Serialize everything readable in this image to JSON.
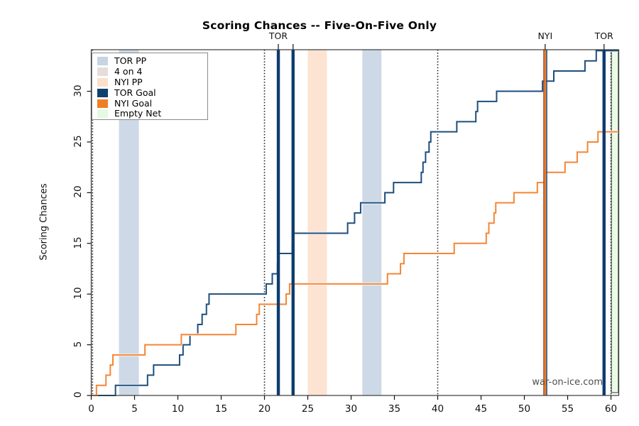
{
  "chart_data": {
    "type": "line",
    "subtype": "cumulative-step",
    "title": "Scoring Chances -- Five-On-Five Only",
    "xlabel": "",
    "ylabel": "Scoring Chances",
    "watermark": "war-on-ice.com",
    "xlim": [
      0,
      60.9
    ],
    "ylim": [
      0,
      34.1
    ],
    "x_ticks": [
      0,
      5,
      10,
      15,
      20,
      25,
      30,
      35,
      40,
      45,
      50,
      55,
      60
    ],
    "y_ticks": [
      0,
      5,
      10,
      15,
      20,
      25,
      30
    ],
    "grid": false,
    "series": [
      {
        "name": "TOR",
        "color": "#1d4e7c",
        "steps": [
          [
            0,
            0
          ],
          [
            2.8,
            1
          ],
          [
            6.5,
            2
          ],
          [
            7.2,
            3
          ],
          [
            10.2,
            4
          ],
          [
            10.6,
            5
          ],
          [
            11.4,
            6
          ],
          [
            12.3,
            7
          ],
          [
            12.8,
            8
          ],
          [
            13.3,
            9
          ],
          [
            13.6,
            10
          ],
          [
            20.2,
            11
          ],
          [
            20.9,
            12
          ],
          [
            21.5,
            13
          ],
          [
            21.6,
            14
          ],
          [
            23.2,
            15
          ],
          [
            23.3,
            16
          ],
          [
            29.6,
            17
          ],
          [
            30.4,
            18
          ],
          [
            31.1,
            19
          ],
          [
            33.9,
            20
          ],
          [
            34.9,
            21
          ],
          [
            38.1,
            22
          ],
          [
            38.3,
            23
          ],
          [
            38.6,
            24
          ],
          [
            39.0,
            25
          ],
          [
            39.2,
            26
          ],
          [
            42.2,
            27
          ],
          [
            44.4,
            28
          ],
          [
            44.6,
            29
          ],
          [
            46.8,
            30
          ],
          [
            52.1,
            31
          ],
          [
            53.4,
            32
          ],
          [
            57.0,
            33
          ],
          [
            58.3,
            34
          ]
        ],
        "final_value": 34
      },
      {
        "name": "NYI",
        "color": "#f58634",
        "steps": [
          [
            0,
            0
          ],
          [
            0.6,
            1
          ],
          [
            1.7,
            2
          ],
          [
            2.2,
            3
          ],
          [
            2.5,
            4
          ],
          [
            6.2,
            5
          ],
          [
            10.4,
            6
          ],
          [
            16.7,
            7
          ],
          [
            19.1,
            8
          ],
          [
            19.4,
            9
          ],
          [
            22.5,
            10
          ],
          [
            22.9,
            11
          ],
          [
            34.2,
            12
          ],
          [
            35.7,
            13
          ],
          [
            36.1,
            14
          ],
          [
            41.9,
            15
          ],
          [
            45.6,
            16
          ],
          [
            45.9,
            17
          ],
          [
            46.5,
            18
          ],
          [
            46.7,
            19
          ],
          [
            48.8,
            20
          ],
          [
            51.5,
            21
          ],
          [
            52.4,
            22
          ],
          [
            54.7,
            23
          ],
          [
            56.1,
            24
          ],
          [
            57.3,
            25
          ],
          [
            58.5,
            26
          ]
        ],
        "final_value": 26
      }
    ],
    "events": {
      "goals": [
        {
          "team": "TOR",
          "time": 21.6
        },
        {
          "team": "TOR",
          "time": 23.3
        },
        {
          "team": "NYI",
          "time": 52.4
        },
        {
          "team": "TOR",
          "time": 59.2
        }
      ],
      "goal_labels": [
        {
          "text": "TOR",
          "time": 21.6
        },
        {
          "text": "NYI",
          "time": 52.4
        },
        {
          "text": "TOR",
          "time": 59.2
        }
      ],
      "period_lines": [
        0.15,
        20,
        40,
        60
      ],
      "bands": [
        {
          "kind": "TOR PP",
          "from": 3.2,
          "to": 5.5
        },
        {
          "kind": "NYI PP",
          "from": 25.0,
          "to": 27.2
        },
        {
          "kind": "TOR PP",
          "from": 31.3,
          "to": 33.5
        },
        {
          "kind": "Empty Net",
          "from": 60.05,
          "to": 60.85
        }
      ]
    },
    "band_colors": {
      "TOR PP": "#cdd9e7",
      "4 on 4": "#e6dcda",
      "NYI PP": "#fde3d2",
      "Empty Net": "#eafbe6"
    },
    "goal_line_colors": {
      "TOR": "#0d3c6e",
      "NYI": "#ef7c28"
    },
    "legend": {
      "position": "top-left",
      "items": [
        {
          "label": "TOR PP",
          "color": "#c6d4e3"
        },
        {
          "label": "4 on 4",
          "color": "#e6dcda"
        },
        {
          "label": "NYI PP",
          "color": "#fbe0cc"
        },
        {
          "label": "TOR Goal",
          "color": "#10406e"
        },
        {
          "label": "NYI Goal",
          "color": "#f07e26"
        },
        {
          "label": "Empty Net",
          "color": "#e6f9e2"
        }
      ]
    }
  }
}
